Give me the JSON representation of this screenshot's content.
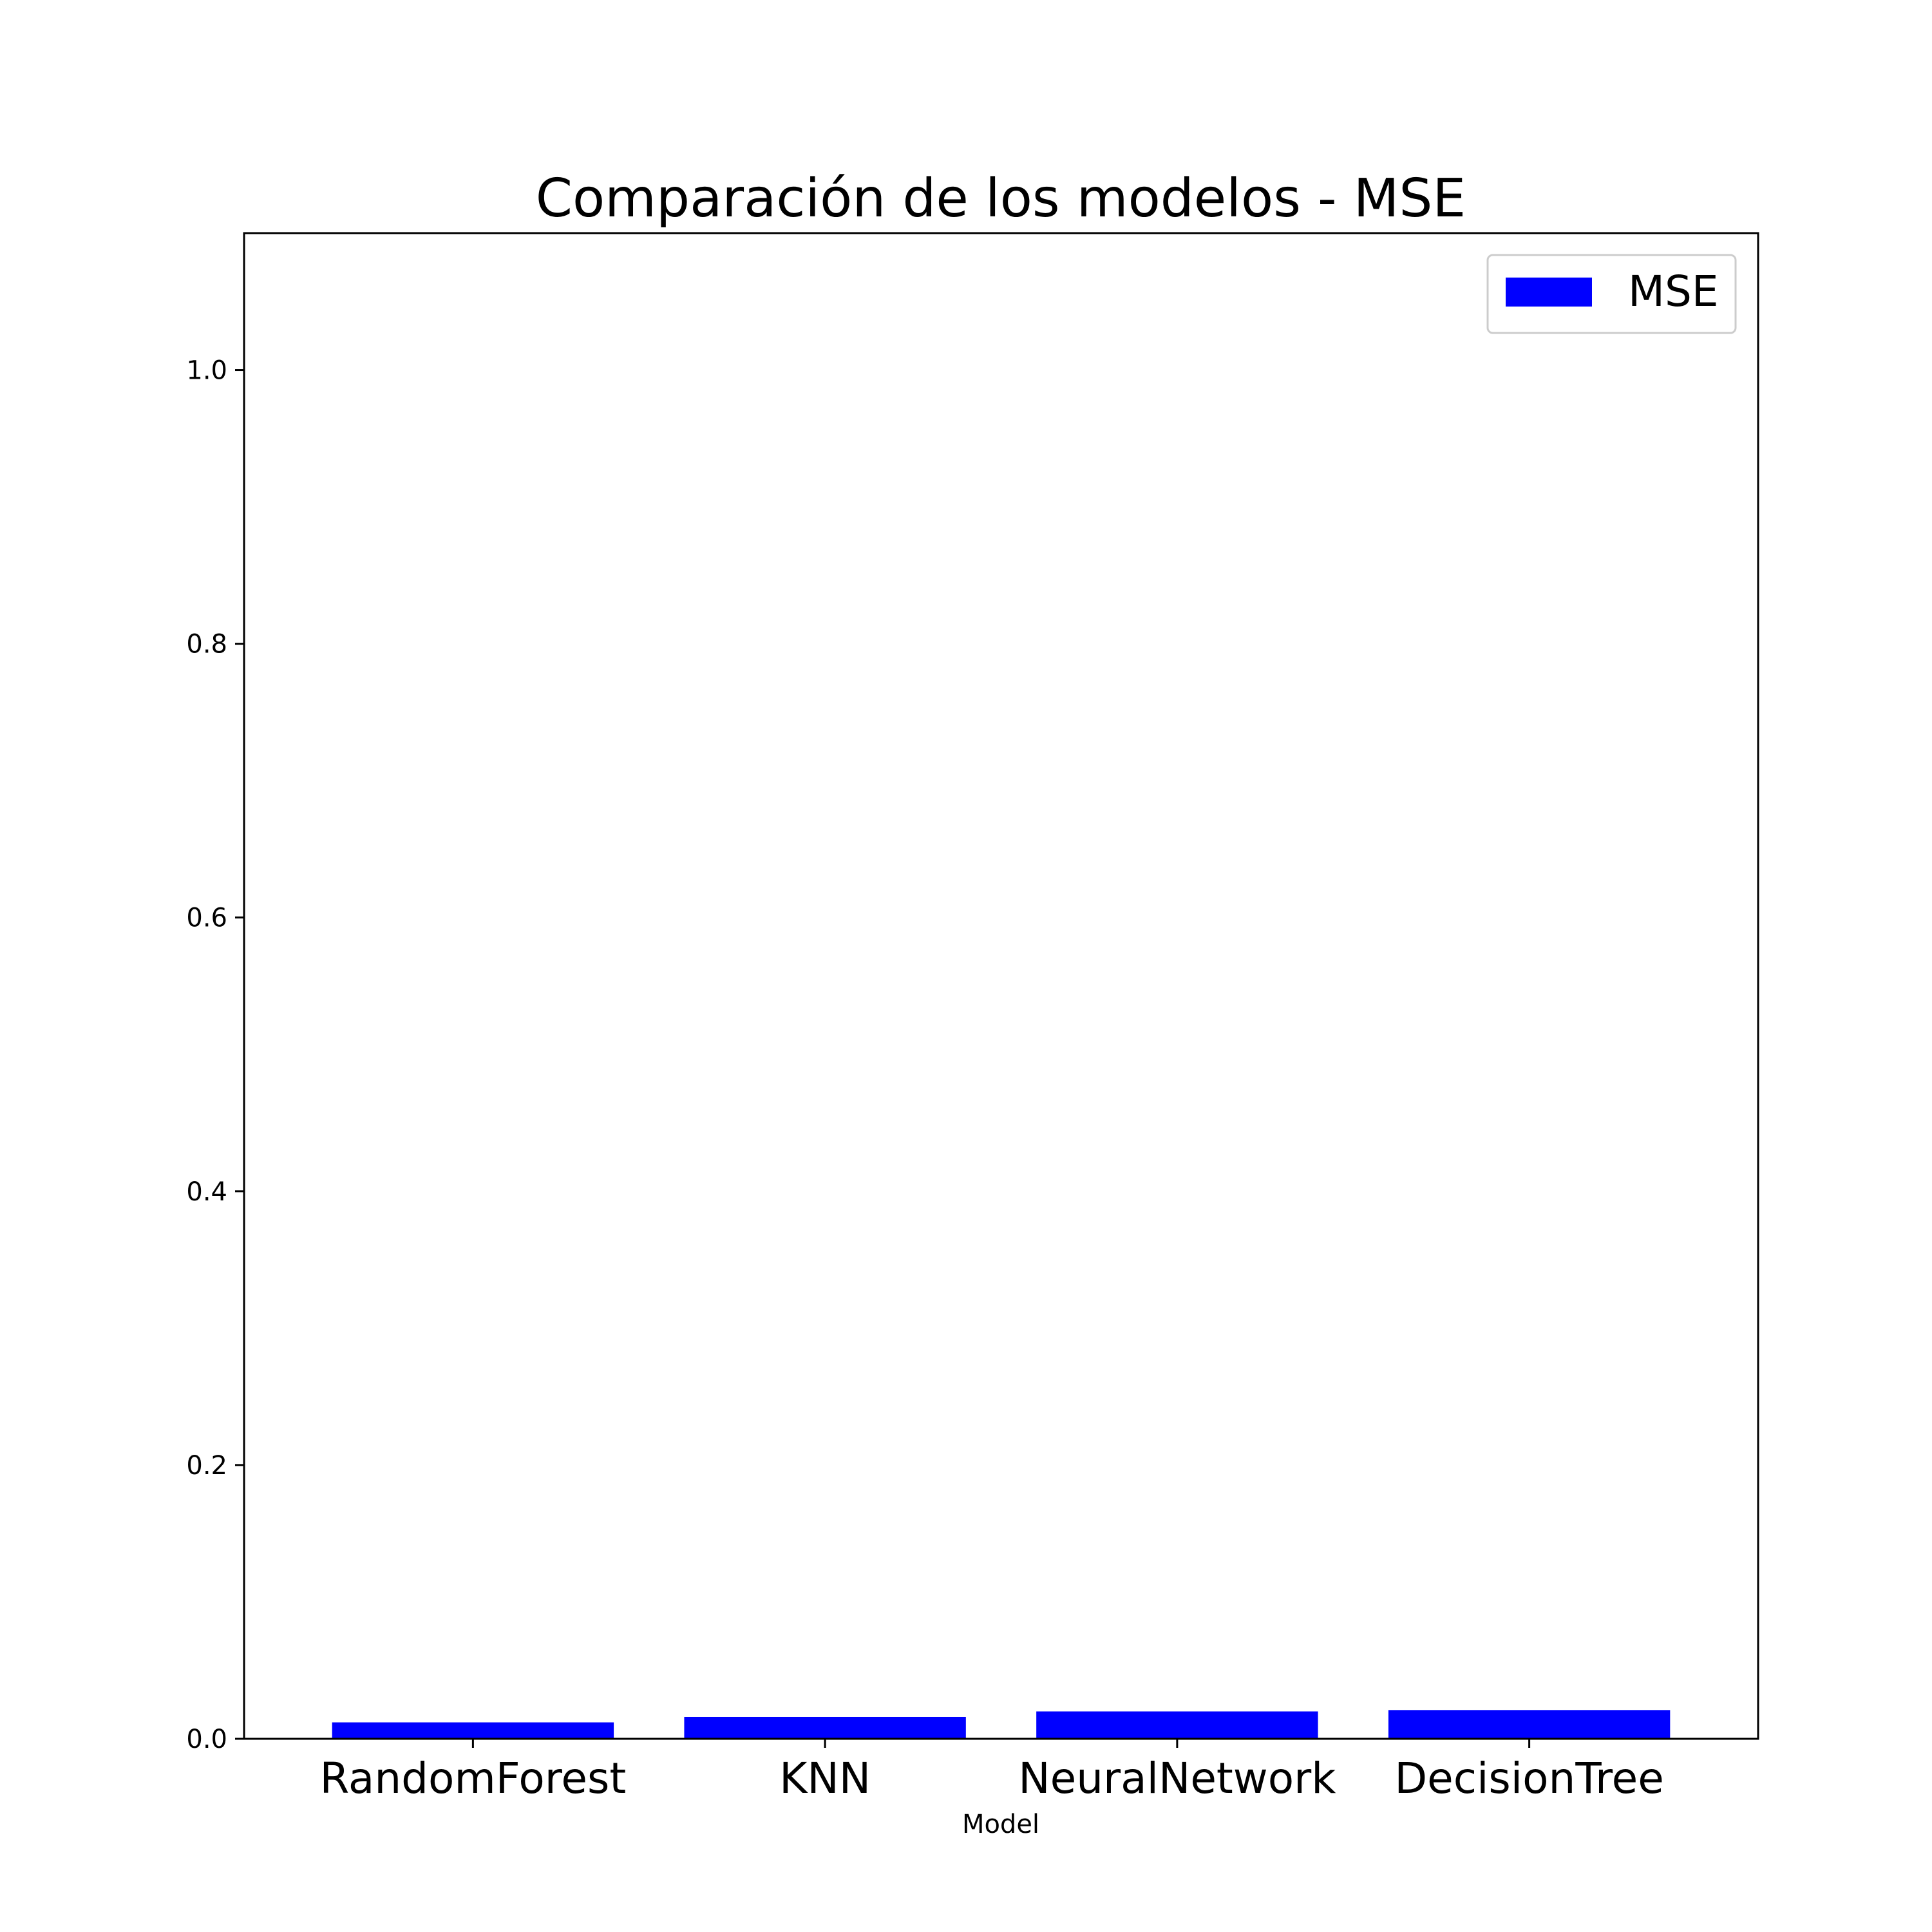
{
  "chart_data": {
    "type": "bar",
    "title": "Comparación de los modelos - MSE",
    "xlabel": "Model",
    "ylabel": "",
    "categories": [
      "RandomForest",
      "KNN",
      "NeuralNetwork",
      "DecisionTree"
    ],
    "series": [
      {
        "name": "MSE",
        "values": [
          0.012,
          0.016,
          0.02,
          0.021
        ],
        "color": "#0000ff"
      }
    ],
    "ylim": [
      0,
      1.1
    ],
    "yticks": [
      "0.0",
      "0.2",
      "0.4",
      "0.6",
      "0.8",
      "1.0"
    ],
    "grid": false,
    "legend_position": "top-right"
  }
}
